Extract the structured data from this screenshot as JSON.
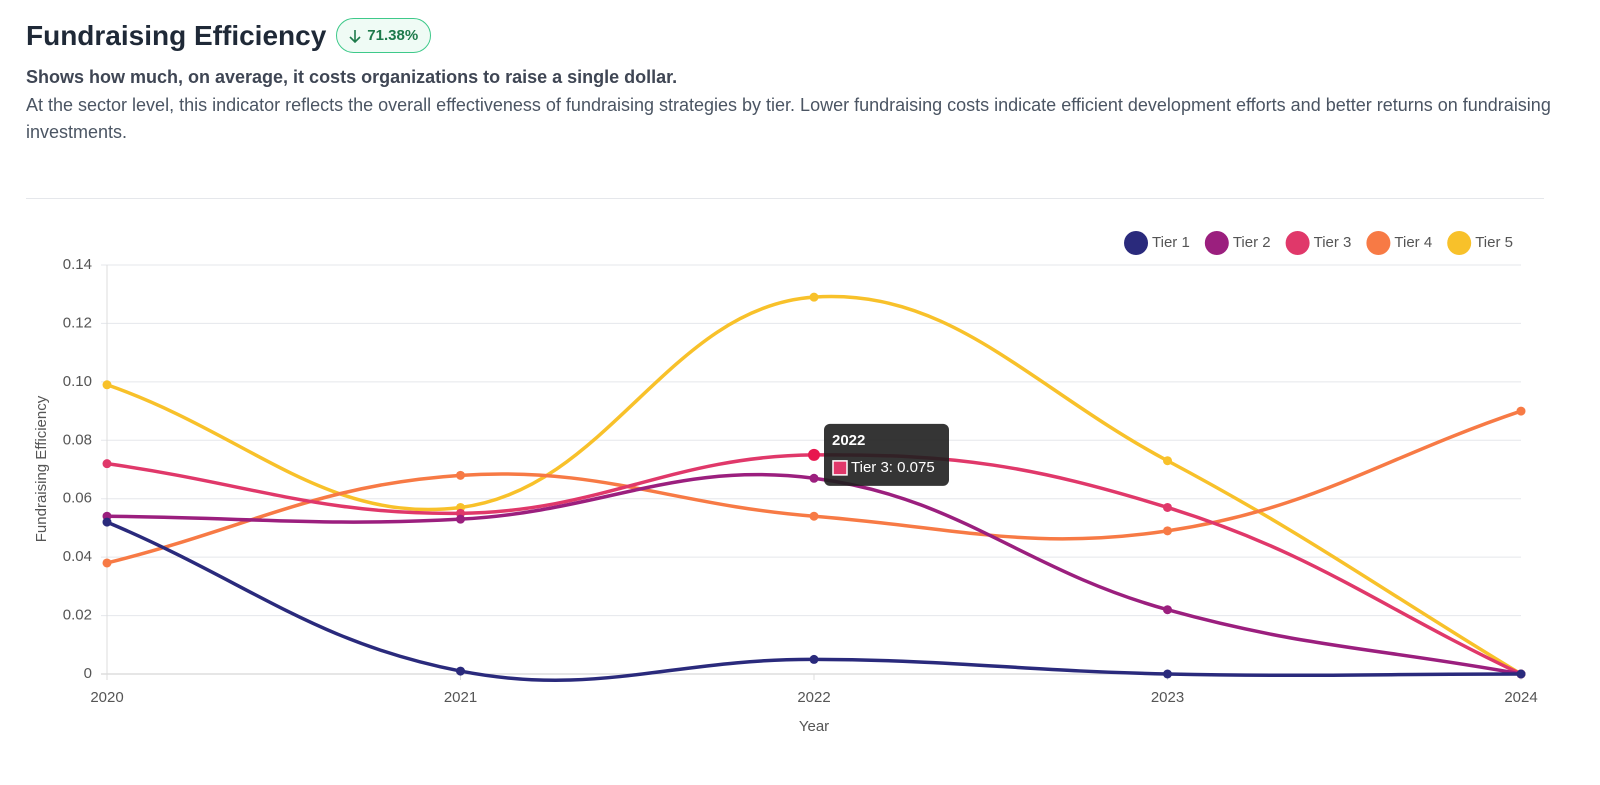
{
  "header": {
    "title": "Fundraising Efficiency",
    "badge": "71.38%",
    "subtitle": "Shows how much, on average, it costs organizations to raise a single dollar.",
    "description": "At the sector level, this indicator reflects the overall effectiveness of fundraising strategies by tier. Lower fundraising costs indicate efficient development efforts and better returns on fundraising investments."
  },
  "chart_data": {
    "type": "line",
    "x_label": "Year",
    "y_label": "Fundraising Efficiency",
    "x": [
      2020,
      2021,
      2022,
      2023,
      2024
    ],
    "xlim": [
      2020,
      2024
    ],
    "xticks": [
      2020,
      2021,
      2022,
      2023,
      2024
    ],
    "ylim": [
      0,
      0.14
    ],
    "yticks": [
      0,
      0.02,
      0.04,
      0.06,
      0.08,
      {
        "value": 0.1,
        "label": "0.10"
      },
      0.12,
      0.14
    ],
    "grid": true,
    "legend": "top-right",
    "series": [
      {
        "name": "Tier 1",
        "color": "#2a2a7c",
        "values": [
          0.052,
          0.001,
          0.005,
          0,
          0
        ]
      },
      {
        "name": "Tier 2",
        "color": "#9b1f7e",
        "values": [
          0.054,
          0.053,
          0.067,
          0.022,
          0
        ]
      },
      {
        "name": "Tier 3",
        "color": "#e0386a",
        "values": [
          0.072,
          0.055,
          0.075,
          0.057,
          0
        ]
      },
      {
        "name": "Tier 4",
        "color": "#f77a45",
        "values": [
          0.038,
          0.068,
          0.054,
          0.049,
          0.09
        ]
      },
      {
        "name": "Tier 5",
        "color": "#f8c12a",
        "values": [
          0.099,
          0.057,
          0.129,
          0.073,
          0
        ]
      }
    ],
    "tooltip": {
      "title": "2022",
      "label": "Tier 3: 0.075"
    }
  }
}
